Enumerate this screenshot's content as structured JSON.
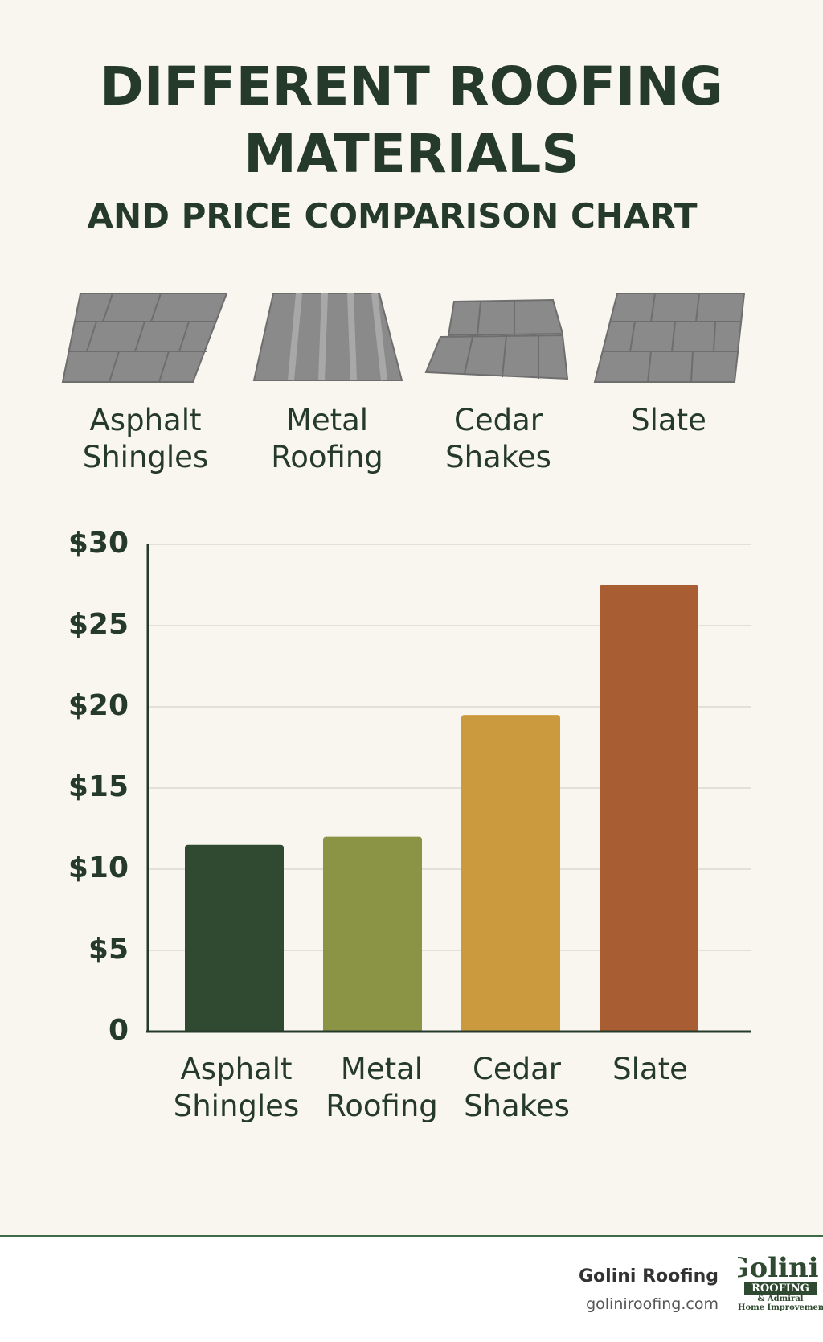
{
  "title": "DIFFERENT ROOFING MATERIALS",
  "subtitle": "AND PRICE COMPARISON CHART",
  "materials": [
    "Asphalt Shingles",
    "Metal Roofing",
    "Cedar Shakes",
    "Slate"
  ],
  "chart_data": {
    "type": "bar",
    "categories": [
      "Asphalt Shingles",
      "Metal Roofing",
      "Cedar Shakes",
      "Slate"
    ],
    "series": [
      {
        "values": [
          11.5,
          12,
          19.5,
          27.5
        ],
        "colors": [
          "#2f4a30",
          "#8a9444",
          "#cc9a3e",
          "#a85e32"
        ]
      }
    ],
    "ylim": [
      0,
      30
    ],
    "yticks": [
      0,
      {
        "value": 5,
        "label": "$5"
      },
      {
        "value": 10,
        "label": "$10"
      },
      {
        "value": 15,
        "label": "$15"
      },
      {
        "value": 20,
        "label": "$20"
      },
      {
        "value": 25,
        "label": "$25"
      },
      {
        "value": 30,
        "label": "$30"
      }
    ],
    "grid": true
  },
  "footer": {
    "company": "Golini Roofing",
    "website": "goliniroofing.com",
    "logo": {
      "name": "Golini",
      "line1": "ROOFING",
      "line2": "& Admiral",
      "line3": "Home Improvement"
    }
  }
}
